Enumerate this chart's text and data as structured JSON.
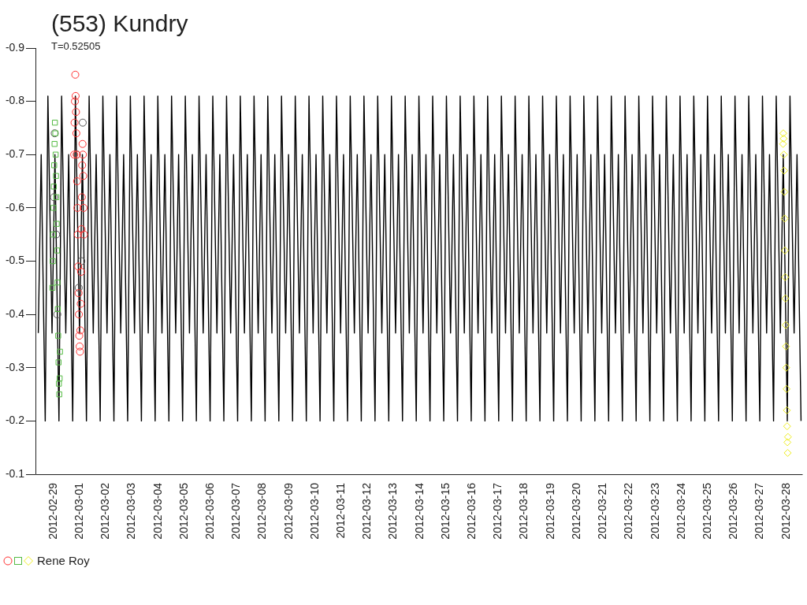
{
  "chart_data": {
    "type": "line",
    "title": "(553) Kundry",
    "subtitle": "T=0.52505",
    "xlim": [
      "2012-02-28T07:30",
      "2012-03-28T15:00"
    ],
    "xticks": [
      "2012-02-29",
      "2012-03-01",
      "2012-03-02",
      "2012-03-03",
      "2012-03-04",
      "2012-03-05",
      "2012-03-06",
      "2012-03-07",
      "2012-03-08",
      "2012-03-09",
      "2012-03-10",
      "2012-03-11",
      "2012-03-12",
      "2012-03-13",
      "2012-03-14",
      "2012-03-15",
      "2012-03-16",
      "2012-03-17",
      "2012-03-18",
      "2012-03-19",
      "2012-03-20",
      "2012-03-21",
      "2012-03-22",
      "2012-03-23",
      "2012-03-24",
      "2012-03-25",
      "2012-03-26",
      "2012-03-27",
      "2012-03-28"
    ],
    "ylim": [
      -0.1,
      -0.9
    ],
    "yticks": [
      -0.1,
      -0.2,
      -0.3,
      -0.4,
      -0.5,
      -0.6,
      -0.7,
      -0.8,
      -0.9
    ],
    "grid": false,
    "legend": "bottom left",
    "series": [
      {
        "type": "line",
        "color": "#000000",
        "marker": "none",
        "x": [
          "2012-02-28T10:06",
          "2012-02-28T12:45",
          "2012-02-28T16:27",
          "2012-02-28T18:54",
          "2012-02-28T22:42",
          "2012-02-29T01:21",
          "2012-02-29T05:03",
          "2012-02-29T07:30",
          "2012-02-29T11:18",
          "2012-02-29T13:57",
          "2012-02-29T17:39",
          "2012-02-29T20:06",
          "2012-02-29T23:54",
          "2012-03-01T02:33",
          "2012-03-01T06:15",
          "2012-03-01T08:42",
          "2012-03-01T12:30",
          "2012-03-01T15:09",
          "2012-03-01T18:51",
          "2012-03-01T21:18",
          "2012-03-02T01:06",
          "2012-03-02T03:45",
          "2012-03-02T07:27",
          "2012-03-02T09:54",
          "2012-03-02T13:42",
          "2012-03-02T16:21",
          "2012-03-02T20:03",
          "2012-03-02T22:30",
          "2012-03-03T02:18",
          "2012-03-03T04:57",
          "2012-03-03T08:39",
          "2012-03-03T11:06",
          "2012-03-03T14:54",
          "2012-03-03T17:33",
          "2012-03-03T21:15",
          "2012-03-03T23:42",
          "2012-03-04T03:30",
          "2012-03-04T06:09",
          "2012-03-04T09:51",
          "2012-03-04T12:18",
          "2012-03-04T16:06",
          "2012-03-04T18:45",
          "2012-03-04T22:27",
          "2012-03-05T00:54",
          "2012-03-05T04:42",
          "2012-03-05T07:21",
          "2012-03-05T11:03",
          "2012-03-05T13:30",
          "2012-03-05T17:18",
          "2012-03-05T19:57",
          "2012-03-05T23:39",
          "2012-03-06T02:06",
          "2012-03-06T05:54",
          "2012-03-06T08:33",
          "2012-03-06T12:15",
          "2012-03-06T14:42",
          "2012-03-06T18:30",
          "2012-03-06T21:09",
          "2012-03-07T00:52",
          "2012-03-07T03:19",
          "2012-03-07T07:07",
          "2012-03-07T09:46",
          "2012-03-07T13:28",
          "2012-03-07T15:55",
          "2012-03-07T19:43",
          "2012-03-07T22:22",
          "2012-03-08T02:04",
          "2012-03-08T04:31",
          "2012-03-08T08:19",
          "2012-03-08T10:58",
          "2012-03-08T14:40",
          "2012-03-08T17:07",
          "2012-03-08T20:55",
          "2012-03-08T23:34",
          "2012-03-09T03:16",
          "2012-03-09T05:43",
          "2012-03-09T09:31",
          "2012-03-09T12:10",
          "2012-03-09T15:52",
          "2012-03-09T18:19",
          "2012-03-09T22:07",
          "2012-03-10T00:46",
          "2012-03-10T04:28",
          "2012-03-10T06:55",
          "2012-03-10T10:43",
          "2012-03-10T13:22",
          "2012-03-10T17:04",
          "2012-03-10T19:31",
          "2012-03-10T23:19",
          "2012-03-11T01:58",
          "2012-03-11T05:40",
          "2012-03-11T08:07",
          "2012-03-11T11:55",
          "2012-03-11T14:34",
          "2012-03-11T18:16",
          "2012-03-11T20:43",
          "2012-03-12T00:31",
          "2012-03-12T03:10",
          "2012-03-12T06:52",
          "2012-03-12T09:19",
          "2012-03-12T13:07",
          "2012-03-12T15:46",
          "2012-03-12T19:28",
          "2012-03-12T21:55",
          "2012-03-13T01:43",
          "2012-03-13T04:22",
          "2012-03-13T08:04",
          "2012-03-13T10:31",
          "2012-03-13T14:19",
          "2012-03-13T16:58",
          "2012-03-13T20:40",
          "2012-03-13T23:07",
          "2012-03-14T02:55",
          "2012-03-14T05:34",
          "2012-03-14T09:17",
          "2012-03-14T11:44",
          "2012-03-14T15:32",
          "2012-03-14T18:11",
          "2012-03-14T21:53",
          "2012-03-15T00:20",
          "2012-03-15T04:08",
          "2012-03-15T06:47",
          "2012-03-15T10:29",
          "2012-03-15T12:56",
          "2012-03-15T16:44",
          "2012-03-15T19:23",
          "2012-03-15T23:05",
          "2012-03-16T01:32",
          "2012-03-16T05:20",
          "2012-03-16T07:59",
          "2012-03-16T11:41",
          "2012-03-16T14:08",
          "2012-03-16T17:56",
          "2012-03-16T20:35",
          "2012-03-17T00:17",
          "2012-03-17T02:44",
          "2012-03-17T06:32",
          "2012-03-17T09:11",
          "2012-03-17T12:53",
          "2012-03-17T15:20",
          "2012-03-17T19:08",
          "2012-03-17T21:47",
          "2012-03-18T01:29",
          "2012-03-18T03:56",
          "2012-03-18T07:44",
          "2012-03-18T10:23",
          "2012-03-18T14:05",
          "2012-03-18T16:32",
          "2012-03-18T20:20",
          "2012-03-18T22:59",
          "2012-03-19T02:41",
          "2012-03-19T05:08",
          "2012-03-19T08:56",
          "2012-03-19T11:35",
          "2012-03-19T15:17",
          "2012-03-19T17:44",
          "2012-03-19T21:32",
          "2012-03-20T00:11",
          "2012-03-20T03:53",
          "2012-03-20T06:20",
          "2012-03-20T10:08",
          "2012-03-20T12:47",
          "2012-03-20T16:29",
          "2012-03-20T18:56",
          "2012-03-20T22:44",
          "2012-03-21T01:23",
          "2012-03-21T05:05",
          "2012-03-21T07:32",
          "2012-03-21T11:20",
          "2012-03-21T13:59",
          "2012-03-21T17:42",
          "2012-03-21T20:09",
          "2012-03-21T23:57",
          "2012-03-22T02:36",
          "2012-03-22T06:18",
          "2012-03-22T08:45",
          "2012-03-22T12:33",
          "2012-03-22T15:12",
          "2012-03-22T18:54",
          "2012-03-22T21:21",
          "2012-03-23T01:09",
          "2012-03-23T03:48",
          "2012-03-23T07:30",
          "2012-03-23T09:57",
          "2012-03-23T13:45",
          "2012-03-23T16:24",
          "2012-03-23T20:06",
          "2012-03-23T22:33",
          "2012-03-24T02:21",
          "2012-03-24T05:00",
          "2012-03-24T08:42",
          "2012-03-24T11:09",
          "2012-03-24T14:57",
          "2012-03-24T17:36",
          "2012-03-24T21:18",
          "2012-03-24T23:45",
          "2012-03-25T03:33",
          "2012-03-25T06:12",
          "2012-03-25T09:54",
          "2012-03-25T12:21",
          "2012-03-25T16:09",
          "2012-03-25T18:48",
          "2012-03-25T22:30",
          "2012-03-26T00:57",
          "2012-03-26T04:45",
          "2012-03-26T07:24",
          "2012-03-26T11:06",
          "2012-03-26T13:33",
          "2012-03-26T17:21",
          "2012-03-26T20:00",
          "2012-03-26T23:42",
          "2012-03-27T02:09",
          "2012-03-27T05:57",
          "2012-03-27T08:36",
          "2012-03-27T12:18",
          "2012-03-27T14:45",
          "2012-03-27T18:33",
          "2012-03-27T21:12",
          "2012-03-28T00:55",
          "2012-03-28T03:22",
          "2012-03-28T07:10",
          "2012-03-28T09:49",
          "2012-03-28T13:31"
        ],
        "values": [
          -0.365,
          -0.7,
          -0.2,
          -0.81,
          -0.365,
          -0.7,
          -0.2,
          -0.81,
          -0.365,
          -0.7,
          -0.2,
          -0.81,
          -0.365,
          -0.7,
          -0.2,
          -0.81,
          -0.365,
          -0.7,
          -0.2,
          -0.81,
          -0.365,
          -0.7,
          -0.2,
          -0.81,
          -0.365,
          -0.7,
          -0.2,
          -0.81,
          -0.365,
          -0.7,
          -0.2,
          -0.81,
          -0.365,
          -0.7,
          -0.2,
          -0.81,
          -0.365,
          -0.7,
          -0.2,
          -0.81,
          -0.365,
          -0.7,
          -0.2,
          -0.81,
          -0.365,
          -0.7,
          -0.2,
          -0.81,
          -0.365,
          -0.7,
          -0.2,
          -0.81,
          -0.365,
          -0.7,
          -0.2,
          -0.81,
          -0.365,
          -0.7,
          -0.2,
          -0.81,
          -0.365,
          -0.7,
          -0.2,
          -0.81,
          -0.365,
          -0.7,
          -0.2,
          -0.81,
          -0.365,
          -0.7,
          -0.2,
          -0.81,
          -0.365,
          -0.7,
          -0.2,
          -0.81,
          -0.365,
          -0.7,
          -0.2,
          -0.81,
          -0.365,
          -0.7,
          -0.2,
          -0.81,
          -0.365,
          -0.7,
          -0.2,
          -0.81,
          -0.365,
          -0.7,
          -0.2,
          -0.81,
          -0.365,
          -0.7,
          -0.2,
          -0.81,
          -0.365,
          -0.7,
          -0.2,
          -0.81,
          -0.365,
          -0.7,
          -0.2,
          -0.81,
          -0.365,
          -0.7,
          -0.2,
          -0.81,
          -0.365,
          -0.7,
          -0.2,
          -0.81,
          -0.365,
          -0.7,
          -0.2,
          -0.81,
          -0.365,
          -0.7,
          -0.2,
          -0.81,
          -0.365,
          -0.7,
          -0.2,
          -0.81,
          -0.365,
          -0.7,
          -0.2,
          -0.81,
          -0.365,
          -0.7,
          -0.2,
          -0.81,
          -0.365,
          -0.7,
          -0.2,
          -0.81,
          -0.365,
          -0.7,
          -0.2,
          -0.81,
          -0.365,
          -0.7,
          -0.2,
          -0.81,
          -0.365,
          -0.7,
          -0.2,
          -0.81,
          -0.365,
          -0.7,
          -0.2,
          -0.81,
          -0.365,
          -0.7,
          -0.2,
          -0.81,
          -0.365,
          -0.7,
          -0.2,
          -0.81,
          -0.365,
          -0.7,
          -0.2,
          -0.81,
          -0.365,
          -0.7,
          -0.2,
          -0.81,
          -0.365,
          -0.7,
          -0.2,
          -0.81,
          -0.365,
          -0.7,
          -0.2,
          -0.81,
          -0.365,
          -0.7,
          -0.2,
          -0.81,
          -0.365,
          -0.7,
          -0.2,
          -0.81,
          -0.365,
          -0.7,
          -0.2,
          -0.81,
          -0.365,
          -0.7,
          -0.2,
          -0.81,
          -0.365,
          -0.7,
          -0.2,
          -0.81,
          -0.365,
          -0.7,
          -0.2,
          -0.81,
          -0.365,
          -0.7,
          -0.2,
          -0.81,
          -0.365,
          -0.7,
          -0.2,
          -0.81,
          -0.365,
          -0.7,
          -0.2,
          -0.81,
          -0.365,
          -0.7,
          -0.2,
          -0.81,
          -0.365,
          -0.7,
          -0.2,
          -0.81,
          -0.365,
          -0.7,
          -0.2
        ]
      },
      {
        "type": "scatter",
        "name": "Rene Roy",
        "color": "#ff3333",
        "marker": "circle",
        "x": [
          "2012-02-29T19:00",
          "2012-02-29T19:20",
          "2012-02-29T19:40",
          "2012-02-29T20:00",
          "2012-02-29T20:20",
          "2012-02-29T20:40",
          "2012-02-29T21:00",
          "2012-02-29T21:20",
          "2012-02-29T21:40",
          "2012-02-29T22:00",
          "2012-02-29T22:20",
          "2012-02-29T22:40",
          "2012-02-29T23:00",
          "2012-02-29T23:20",
          "2012-02-29T23:40",
          "2012-03-01T00:00",
          "2012-03-01T00:20",
          "2012-03-01T00:40",
          "2012-03-01T01:00",
          "2012-03-01T01:20",
          "2012-03-01T01:40",
          "2012-03-01T02:00",
          "2012-03-01T02:20",
          "2012-03-01T02:40",
          "2012-03-01T03:00",
          "2012-03-01T03:20",
          "2012-03-01T03:40",
          "2012-03-01T04:00"
        ],
        "values": [
          -0.7,
          -0.76,
          -0.8,
          -0.85,
          -0.81,
          -0.78,
          -0.74,
          -0.7,
          -0.65,
          -0.6,
          -0.55,
          -0.49,
          -0.44,
          -0.4,
          -0.36,
          -0.34,
          -0.33,
          -0.37,
          -0.42,
          -0.48,
          -0.56,
          -0.62,
          -0.68,
          -0.72,
          -0.7,
          -0.66,
          -0.6,
          -0.55
        ]
      },
      {
        "type": "scatter",
        "color": "#55bb44",
        "marker": "square",
        "x": [
          "2012-02-28T23:00",
          "2012-02-28T23:20",
          "2012-02-28T23:40",
          "2012-02-29T00:00",
          "2012-02-29T00:20",
          "2012-02-29T00:40",
          "2012-02-29T01:00",
          "2012-02-29T01:20",
          "2012-02-29T01:40",
          "2012-02-29T02:00",
          "2012-02-29T02:20",
          "2012-02-29T02:40",
          "2012-02-29T03:00",
          "2012-02-29T03:20",
          "2012-02-29T03:40",
          "2012-02-29T04:00",
          "2012-02-29T04:20",
          "2012-02-29T04:40",
          "2012-02-29T05:00",
          "2012-02-29T05:20",
          "2012-02-29T05:40",
          "2012-02-29T06:00"
        ],
        "values": [
          -0.45,
          -0.5,
          -0.55,
          -0.6,
          -0.64,
          -0.68,
          -0.72,
          -0.76,
          -0.74,
          -0.7,
          -0.66,
          -0.62,
          -0.57,
          -0.52,
          -0.46,
          -0.41,
          -0.36,
          -0.31,
          -0.27,
          -0.25,
          -0.28,
          -0.33
        ]
      },
      {
        "type": "scatter",
        "color": "#eeee22",
        "marker": "diamond",
        "x": [
          "2012-03-27T21:00",
          "2012-03-27T21:15",
          "2012-03-27T21:30",
          "2012-03-27T21:45",
          "2012-03-27T22:00",
          "2012-03-27T22:15",
          "2012-03-27T22:30",
          "2012-03-27T22:45",
          "2012-03-27T23:00",
          "2012-03-27T23:15",
          "2012-03-27T23:30",
          "2012-03-27T23:45",
          "2012-03-28T00:00",
          "2012-03-28T00:15",
          "2012-03-28T00:30",
          "2012-03-28T00:45",
          "2012-03-28T01:00",
          "2012-03-28T01:15",
          "2012-03-28T01:30"
        ],
        "values": [
          -0.72,
          -0.74,
          -0.73,
          -0.7,
          -0.67,
          -0.63,
          -0.58,
          -0.52,
          -0.47,
          -0.43,
          -0.38,
          -0.34,
          -0.3,
          -0.26,
          -0.22,
          -0.19,
          -0.16,
          -0.14,
          -0.17
        ]
      },
      {
        "type": "scatter",
        "color": "#555555",
        "marker": "circle",
        "x": [
          "2012-02-29T00:30",
          "2012-02-29T01:10",
          "2012-02-29T02:30",
          "2012-02-29T03:30",
          "2012-02-29T21:30",
          "2012-02-29T23:10",
          "2012-03-01T01:30",
          "2012-03-01T02:50"
        ],
        "values": [
          -0.62,
          -0.74,
          -0.55,
          -0.4,
          -0.7,
          -0.45,
          -0.5,
          -0.76
        ]
      }
    ]
  }
}
